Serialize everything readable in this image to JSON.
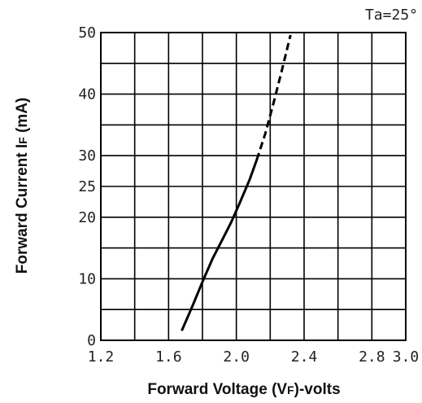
{
  "chart_data": {
    "type": "line",
    "title": "",
    "annotation": "Ta=25°",
    "xlabel": {
      "prefix": "Forward Voltage (V",
      "sub": "F",
      "suffix": ")-volts"
    },
    "ylabel": {
      "prefix": "Forward Current I",
      "sub": "F",
      "suffix": " (mA)"
    },
    "xlim": [
      1.2,
      3.0
    ],
    "ylim": [
      0,
      50
    ],
    "x_ticks": [
      {
        "value": 1.2,
        "label": "1.2"
      },
      {
        "value": 1.6,
        "label": "1.6"
      },
      {
        "value": 2.0,
        "label": "2.0"
      },
      {
        "value": 2.4,
        "label": "2.4"
      },
      {
        "value": 2.8,
        "label": "2.8"
      },
      {
        "value": 3.0,
        "label": "3.0"
      }
    ],
    "y_ticks": [
      {
        "value": 0,
        "label": "0"
      },
      {
        "value": 10,
        "label": "10"
      },
      {
        "value": 20,
        "label": "20"
      },
      {
        "value": 25,
        "label": "25"
      },
      {
        "value": 30,
        "label": "30"
      },
      {
        "value": 40,
        "label": "40"
      },
      {
        "value": 50,
        "label": "50"
      }
    ],
    "grid": true,
    "grid_x_step": 0.2,
    "grid_y_step": 5,
    "series": [
      {
        "style": "solid",
        "color": "#000000",
        "points": [
          [
            1.68,
            1.7
          ],
          [
            1.74,
            5.5
          ],
          [
            1.8,
            9.5
          ],
          [
            1.86,
            13.3
          ],
          [
            1.92,
            16.5
          ],
          [
            1.97,
            19.2
          ],
          [
            2.02,
            22.3
          ],
          [
            2.08,
            26.2
          ],
          [
            2.12,
            29.3
          ]
        ]
      },
      {
        "style": "dashed",
        "color": "#000000",
        "points": [
          [
            2.12,
            29.3
          ],
          [
            2.17,
            33.5
          ],
          [
            2.22,
            38.6
          ],
          [
            2.27,
            44.0
          ],
          [
            2.32,
            49.6
          ]
        ]
      }
    ]
  }
}
